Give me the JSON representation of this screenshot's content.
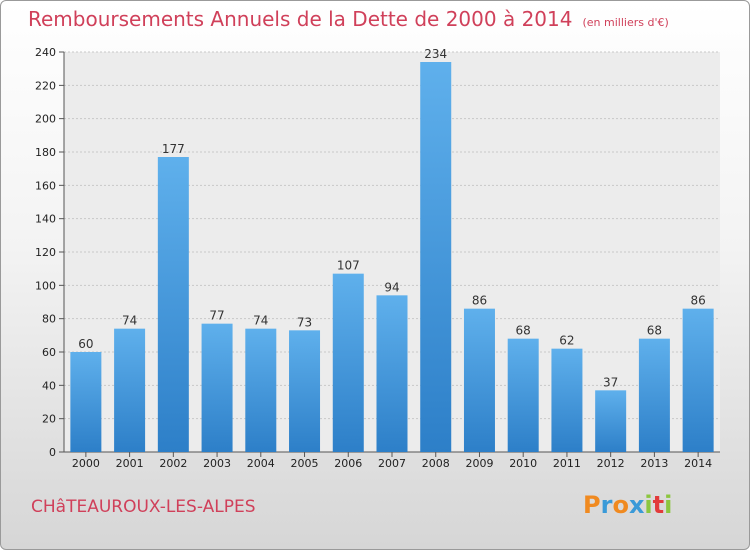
{
  "chart_data": {
    "type": "bar",
    "title": "Remboursements Annuels de la Dette de 2000 à 2014",
    "subtitle": "(en milliers d'€)",
    "categories": [
      "2000",
      "2001",
      "2002",
      "2003",
      "2004",
      "2005",
      "2006",
      "2007",
      "2008",
      "2009",
      "2010",
      "2011",
      "2012",
      "2013",
      "2014"
    ],
    "values": [
      60,
      74,
      177,
      77,
      74,
      73,
      107,
      94,
      234,
      86,
      68,
      62,
      37,
      68,
      86
    ],
    "xlabel": "",
    "ylabel": "",
    "ylim": [
      0,
      240
    ],
    "yticks": [
      0,
      20,
      40,
      60,
      80,
      100,
      120,
      140,
      160,
      180,
      200,
      220,
      240
    ],
    "grid": true,
    "bar_color": "#4f9ee0"
  },
  "footer": {
    "commune": "CHâTEAUROUX-LES-ALPES",
    "logo": [
      "P",
      "r",
      "o",
      "x",
      "i",
      "t",
      "i"
    ],
    "logo_colors": [
      "#f08a20",
      "#3a9ad8",
      "#f08a20",
      "#3a9ad8",
      "#8cc63f",
      "#e23b3b",
      "#8cc63f"
    ]
  }
}
